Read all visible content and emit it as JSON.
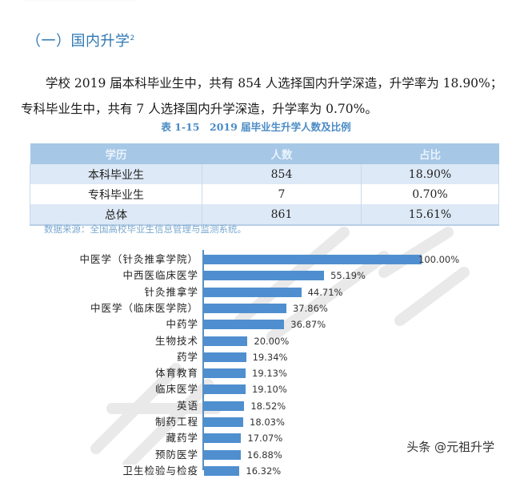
{
  "section": {
    "title": "（一）国内升学",
    "footnote_mark": "2"
  },
  "paragraph": {
    "line1": "学校 2019 届本科毕业生中，共有 854 人选择国内升学深造，升学率为 18.90%；",
    "line2": "专科毕业生中，共有 7 人选择国内升学深造，升学率为 0.70%。"
  },
  "table": {
    "caption": "表 1-15　2019 届毕业生升学人数及比例",
    "headers": [
      "学历",
      "人数",
      "占比"
    ],
    "rows": [
      [
        "本科毕业生",
        "854",
        "18.90%"
      ],
      [
        "专科毕业生",
        "7",
        "0.70%"
      ],
      [
        "总体",
        "861",
        "15.61%"
      ]
    ],
    "source": "数据来源：全国高校毕业生信息管理与监测系统。"
  },
  "chart_data": {
    "type": "bar",
    "orientation": "horizontal",
    "title": "",
    "xlabel": "",
    "ylabel": "",
    "grid": false,
    "legend": null,
    "bar_color": "#4f8fcf",
    "categories": [
      "中医学（针灸推拿学院）",
      "中西医临床医学",
      "针灸推拿学",
      "中医学（临床医学院）",
      "中药学",
      "生物技术",
      "药学",
      "体育教育",
      "临床医学",
      "英语",
      "制药工程",
      "藏药学",
      "预防医学",
      "卫生检验与检疫"
    ],
    "values": [
      100.0,
      55.19,
      44.71,
      37.86,
      36.87,
      20.0,
      19.34,
      19.13,
      19.1,
      18.52,
      18.03,
      17.07,
      16.88,
      16.32
    ],
    "labels": [
      "100.00%",
      "55.19%",
      "44.71%",
      "37.86%",
      "36.87%",
      "20.00%",
      "19.34%",
      "19.13%",
      "19.10%",
      "18.52%",
      "18.03%",
      "17.07%",
      "16.88%",
      "16.32%"
    ],
    "xlim": [
      0,
      100
    ]
  },
  "credit": "头条 @元祖升学",
  "colors": {
    "accent": "#2f78b4",
    "table_header": "#a6c7e6",
    "table_band": "#dde9f6",
    "bar": "#4f8fcf"
  }
}
